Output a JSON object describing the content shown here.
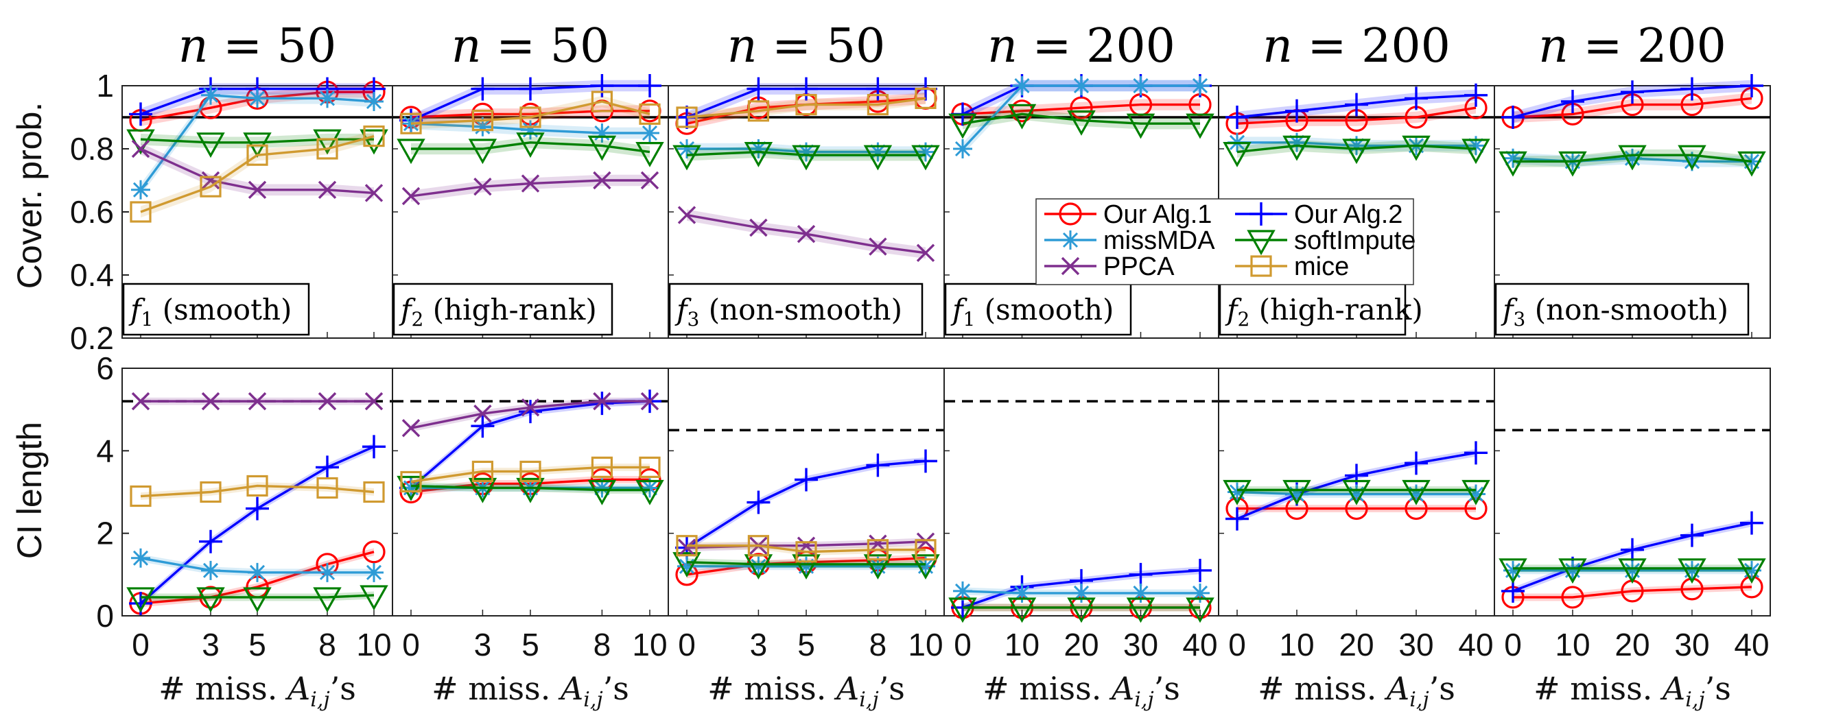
{
  "figure": {
    "row_ylabels": [
      "Cover. prob.",
      "CI length"
    ],
    "xlabel": "# miss. A_{i,j}'s",
    "legend": [
      {
        "key": "alg1",
        "label": "Our Alg.1"
      },
      {
        "key": "alg2",
        "label": "Our Alg.2"
      },
      {
        "key": "missMDA",
        "label": "missMDA"
      },
      {
        "key": "softImpute",
        "label": "softImpute"
      },
      {
        "key": "PPCA",
        "label": "PPCA"
      },
      {
        "key": "mice",
        "label": "mice"
      }
    ]
  },
  "series_styles": {
    "alg1": {
      "color": "#ff0000",
      "marker": "circle"
    },
    "alg2": {
      "color": "#0000ff",
      "marker": "plus"
    },
    "missMDA": {
      "color": "#2e9bd6",
      "marker": "asterisk"
    },
    "softImpute": {
      "color": "#008000",
      "marker": "triangle-down"
    },
    "PPCA": {
      "color": "#7e2f8e",
      "marker": "x"
    },
    "mice": {
      "color": "#d09a30",
      "marker": "square"
    }
  },
  "panels": [
    {
      "n_label": "n = 50",
      "f_sub": "1",
      "f_desc": "(smooth)"
    },
    {
      "n_label": "n = 50",
      "f_sub": "2",
      "f_desc": "(high-rank)"
    },
    {
      "n_label": "n = 50",
      "f_sub": "3",
      "f_desc": "(non-smooth)"
    },
    {
      "n_label": "n = 200",
      "f_sub": "1",
      "f_desc": "(smooth)"
    },
    {
      "n_label": "n = 200",
      "f_sub": "2",
      "f_desc": "(high-rank)"
    },
    {
      "n_label": "n = 200",
      "f_sub": "3",
      "f_desc": "(non-smooth)"
    }
  ],
  "chart_data": [
    {
      "type": "line",
      "row": "coverage",
      "panel": 1,
      "title": "n = 50",
      "annotation": "f1 (smooth)",
      "xlabel": "# miss. A_{i,j}'s",
      "ylabel": "Cover. prob.",
      "x": [
        0,
        3,
        5,
        8,
        10
      ],
      "ylim": [
        0.2,
        1.0
      ],
      "yticks": [
        0.2,
        0.4,
        0.6,
        0.8,
        1
      ],
      "reference_line": 0.9,
      "series": [
        {
          "name": "Our Alg.1",
          "key": "alg1",
          "values": [
            0.89,
            0.93,
            0.96,
            0.98,
            0.98
          ]
        },
        {
          "name": "Our Alg.2",
          "key": "alg2",
          "values": [
            0.91,
            0.99,
            0.99,
            0.99,
            0.99
          ]
        },
        {
          "name": "missMDA",
          "key": "missMDA",
          "values": [
            0.67,
            0.97,
            0.96,
            0.96,
            0.95
          ]
        },
        {
          "name": "softImpute",
          "key": "softImpute",
          "values": [
            0.83,
            0.82,
            0.82,
            0.83,
            0.83
          ]
        },
        {
          "name": "PPCA",
          "key": "PPCA",
          "values": [
            0.8,
            0.7,
            0.67,
            0.67,
            0.66
          ]
        },
        {
          "name": "mice",
          "key": "mice",
          "values": [
            0.6,
            0.68,
            0.78,
            0.8,
            0.84
          ]
        }
      ]
    },
    {
      "type": "line",
      "row": "coverage",
      "panel": 2,
      "title": "n = 50",
      "annotation": "f2 (high-rank)",
      "x": [
        0,
        3,
        5,
        8,
        10
      ],
      "ylim": [
        0.2,
        1.0
      ],
      "reference_line": 0.9,
      "series": [
        {
          "name": "Our Alg.1",
          "key": "alg1",
          "values": [
            0.9,
            0.91,
            0.91,
            0.92,
            0.92
          ]
        },
        {
          "name": "Our Alg.2",
          "key": "alg2",
          "values": [
            0.89,
            0.99,
            0.99,
            1.0,
            1.0
          ]
        },
        {
          "name": "missMDA",
          "key": "missMDA",
          "values": [
            0.88,
            0.87,
            0.86,
            0.85,
            0.85
          ]
        },
        {
          "name": "softImpute",
          "key": "softImpute",
          "values": [
            0.8,
            0.8,
            0.82,
            0.81,
            0.79
          ]
        },
        {
          "name": "PPCA",
          "key": "PPCA",
          "values": [
            0.65,
            0.68,
            0.69,
            0.7,
            0.7
          ]
        },
        {
          "name": "mice",
          "key": "mice",
          "values": [
            0.88,
            0.89,
            0.9,
            0.95,
            0.91
          ]
        }
      ]
    },
    {
      "type": "line",
      "row": "coverage",
      "panel": 3,
      "title": "n = 50",
      "annotation": "f3 (non-smooth)",
      "x": [
        0,
        3,
        5,
        8,
        10
      ],
      "ylim": [
        0.2,
        1.0
      ],
      "reference_line": 0.9,
      "series": [
        {
          "name": "Our Alg.1",
          "key": "alg1",
          "values": [
            0.88,
            0.93,
            0.94,
            0.95,
            0.96
          ]
        },
        {
          "name": "Our Alg.2",
          "key": "alg2",
          "values": [
            0.9,
            0.99,
            0.99,
            0.99,
            0.99
          ]
        },
        {
          "name": "missMDA",
          "key": "missMDA",
          "values": [
            0.8,
            0.8,
            0.79,
            0.79,
            0.79
          ]
        },
        {
          "name": "softImpute",
          "key": "softImpute",
          "values": [
            0.78,
            0.79,
            0.78,
            0.78,
            0.78
          ]
        },
        {
          "name": "PPCA",
          "key": "PPCA",
          "values": [
            0.59,
            0.55,
            0.53,
            0.49,
            0.47
          ]
        },
        {
          "name": "mice",
          "key": "mice",
          "values": [
            0.9,
            0.92,
            0.94,
            0.94,
            0.96
          ]
        }
      ]
    },
    {
      "type": "line",
      "row": "coverage",
      "panel": 4,
      "title": "n = 200",
      "annotation": "f1 (smooth)",
      "x": [
        0,
        10,
        20,
        30,
        40
      ],
      "ylim": [
        0.2,
        1.0
      ],
      "reference_line": 0.9,
      "series": [
        {
          "name": "Our Alg.1",
          "key": "alg1",
          "values": [
            0.91,
            0.92,
            0.93,
            0.94,
            0.94
          ]
        },
        {
          "name": "Our Alg.2",
          "key": "alg2",
          "values": [
            0.91,
            1.0,
            1.0,
            1.0,
            1.0
          ]
        },
        {
          "name": "missMDA",
          "key": "missMDA",
          "values": [
            0.8,
            1.0,
            1.0,
            1.0,
            1.0
          ]
        },
        {
          "name": "softImpute",
          "key": "softImpute",
          "values": [
            0.88,
            0.91,
            0.89,
            0.88,
            0.88
          ]
        }
      ]
    },
    {
      "type": "line",
      "row": "coverage",
      "panel": 5,
      "title": "n = 200",
      "annotation": "f2 (high-rank)",
      "x": [
        0,
        10,
        20,
        30,
        40
      ],
      "ylim": [
        0.2,
        1.0
      ],
      "reference_line": 0.9,
      "series": [
        {
          "name": "Our Alg.1",
          "key": "alg1",
          "values": [
            0.88,
            0.89,
            0.89,
            0.9,
            0.93
          ]
        },
        {
          "name": "Our Alg.2",
          "key": "alg2",
          "values": [
            0.9,
            0.92,
            0.94,
            0.96,
            0.97
          ]
        },
        {
          "name": "missMDA",
          "key": "missMDA",
          "values": [
            0.82,
            0.82,
            0.81,
            0.81,
            0.81
          ]
        },
        {
          "name": "softImpute",
          "key": "softImpute",
          "values": [
            0.79,
            0.81,
            0.8,
            0.81,
            0.8
          ]
        }
      ]
    },
    {
      "type": "line",
      "row": "coverage",
      "panel": 6,
      "title": "n = 200",
      "annotation": "f3 (non-smooth)",
      "x": [
        0,
        10,
        20,
        30,
        40
      ],
      "ylim": [
        0.2,
        1.0
      ],
      "reference_line": 0.9,
      "series": [
        {
          "name": "Our Alg.1",
          "key": "alg1",
          "values": [
            0.9,
            0.91,
            0.94,
            0.94,
            0.96
          ]
        },
        {
          "name": "Our Alg.2",
          "key": "alg2",
          "values": [
            0.9,
            0.95,
            0.98,
            0.99,
            1.0
          ]
        },
        {
          "name": "missMDA",
          "key": "missMDA",
          "values": [
            0.77,
            0.76,
            0.77,
            0.76,
            0.76
          ]
        },
        {
          "name": "softImpute",
          "key": "softImpute",
          "values": [
            0.76,
            0.76,
            0.78,
            0.78,
            0.76
          ]
        }
      ]
    },
    {
      "type": "line",
      "row": "length",
      "panel": 1,
      "ylabel": "CI length",
      "x": [
        0,
        3,
        5,
        8,
        10
      ],
      "ylim": [
        0,
        6
      ],
      "yticks": [
        0,
        2,
        4,
        6
      ],
      "dashed_reference": 5.2,
      "series": [
        {
          "name": "Our Alg.1",
          "key": "alg1",
          "values": [
            0.3,
            0.45,
            0.7,
            1.25,
            1.55
          ]
        },
        {
          "name": "Our Alg.2",
          "key": "alg2",
          "values": [
            0.3,
            1.8,
            2.6,
            3.6,
            4.1
          ]
        },
        {
          "name": "missMDA",
          "key": "missMDA",
          "values": [
            1.4,
            1.1,
            1.05,
            1.05,
            1.05
          ]
        },
        {
          "name": "softImpute",
          "key": "softImpute",
          "values": [
            0.45,
            0.45,
            0.45,
            0.45,
            0.5
          ]
        },
        {
          "name": "PPCA",
          "key": "PPCA",
          "values": [
            5.2,
            5.2,
            5.2,
            5.2,
            5.2
          ]
        },
        {
          "name": "mice",
          "key": "mice",
          "values": [
            2.9,
            3.0,
            3.15,
            3.1,
            3.0
          ]
        }
      ]
    },
    {
      "type": "line",
      "row": "length",
      "panel": 2,
      "x": [
        0,
        3,
        5,
        8,
        10
      ],
      "ylim": [
        0,
        6
      ],
      "dashed_reference": 5.2,
      "series": [
        {
          "name": "Our Alg.1",
          "key": "alg1",
          "values": [
            3.0,
            3.2,
            3.2,
            3.3,
            3.3
          ]
        },
        {
          "name": "Our Alg.2",
          "key": "alg2",
          "values": [
            3.1,
            4.6,
            4.95,
            5.15,
            5.2
          ]
        },
        {
          "name": "missMDA",
          "key": "missMDA",
          "values": [
            3.1,
            3.1,
            3.1,
            3.1,
            3.1
          ]
        },
        {
          "name": "softImpute",
          "key": "softImpute",
          "values": [
            3.15,
            3.1,
            3.1,
            3.05,
            3.05
          ]
        },
        {
          "name": "PPCA",
          "key": "PPCA",
          "values": [
            4.55,
            4.9,
            5.05,
            5.2,
            5.2
          ]
        },
        {
          "name": "mice",
          "key": "mice",
          "values": [
            3.25,
            3.5,
            3.5,
            3.6,
            3.6
          ]
        }
      ]
    },
    {
      "type": "line",
      "row": "length",
      "panel": 3,
      "x": [
        0,
        3,
        5,
        8,
        10
      ],
      "ylim": [
        0,
        6
      ],
      "dashed_reference": 4.5,
      "series": [
        {
          "name": "Our Alg.1",
          "key": "alg1",
          "values": [
            1.0,
            1.25,
            1.3,
            1.35,
            1.4
          ]
        },
        {
          "name": "Our Alg.2",
          "key": "alg2",
          "values": [
            1.65,
            2.75,
            3.3,
            3.65,
            3.75
          ]
        },
        {
          "name": "missMDA",
          "key": "missMDA",
          "values": [
            1.2,
            1.2,
            1.2,
            1.2,
            1.2
          ]
        },
        {
          "name": "softImpute",
          "key": "softImpute",
          "values": [
            1.3,
            1.25,
            1.25,
            1.25,
            1.25
          ]
        },
        {
          "name": "PPCA",
          "key": "PPCA",
          "values": [
            1.65,
            1.7,
            1.7,
            1.75,
            1.8
          ]
        },
        {
          "name": "mice",
          "key": "mice",
          "values": [
            1.7,
            1.7,
            1.55,
            1.6,
            1.6
          ]
        }
      ]
    },
    {
      "type": "line",
      "row": "length",
      "panel": 4,
      "x": [
        0,
        10,
        20,
        30,
        40
      ],
      "ylim": [
        0,
        6
      ],
      "dashed_reference": 5.2,
      "series": [
        {
          "name": "Our Alg.1",
          "key": "alg1",
          "values": [
            0.2,
            0.2,
            0.2,
            0.2,
            0.2
          ]
        },
        {
          "name": "Our Alg.2",
          "key": "alg2",
          "values": [
            0.2,
            0.7,
            0.85,
            1.0,
            1.1
          ]
        },
        {
          "name": "missMDA",
          "key": "missMDA",
          "values": [
            0.6,
            0.55,
            0.55,
            0.55,
            0.55
          ]
        },
        {
          "name": "softImpute",
          "key": "softImpute",
          "values": [
            0.2,
            0.2,
            0.2,
            0.2,
            0.2
          ]
        }
      ]
    },
    {
      "type": "line",
      "row": "length",
      "panel": 5,
      "x": [
        0,
        10,
        20,
        30,
        40
      ],
      "ylim": [
        0,
        6
      ],
      "dashed_reference": 5.2,
      "series": [
        {
          "name": "Our Alg.1",
          "key": "alg1",
          "values": [
            2.6,
            2.6,
            2.6,
            2.6,
            2.6
          ]
        },
        {
          "name": "Our Alg.2",
          "key": "alg2",
          "values": [
            2.35,
            2.95,
            3.4,
            3.7,
            3.95
          ]
        },
        {
          "name": "missMDA",
          "key": "missMDA",
          "values": [
            3.0,
            2.95,
            2.95,
            2.95,
            2.95
          ]
        },
        {
          "name": "softImpute",
          "key": "softImpute",
          "values": [
            3.05,
            3.05,
            3.05,
            3.05,
            3.05
          ]
        }
      ]
    },
    {
      "type": "line",
      "row": "length",
      "panel": 6,
      "x": [
        0,
        10,
        20,
        30,
        40
      ],
      "ylim": [
        0,
        6
      ],
      "dashed_reference": 4.5,
      "series": [
        {
          "name": "Our Alg.1",
          "key": "alg1",
          "values": [
            0.45,
            0.45,
            0.6,
            0.65,
            0.7
          ]
        },
        {
          "name": "Our Alg.2",
          "key": "alg2",
          "values": [
            0.6,
            1.15,
            1.6,
            1.95,
            2.25
          ]
        },
        {
          "name": "missMDA",
          "key": "missMDA",
          "values": [
            1.1,
            1.1,
            1.1,
            1.1,
            1.1
          ]
        },
        {
          "name": "softImpute",
          "key": "softImpute",
          "values": [
            1.15,
            1.15,
            1.15,
            1.15,
            1.15
          ]
        }
      ]
    }
  ]
}
